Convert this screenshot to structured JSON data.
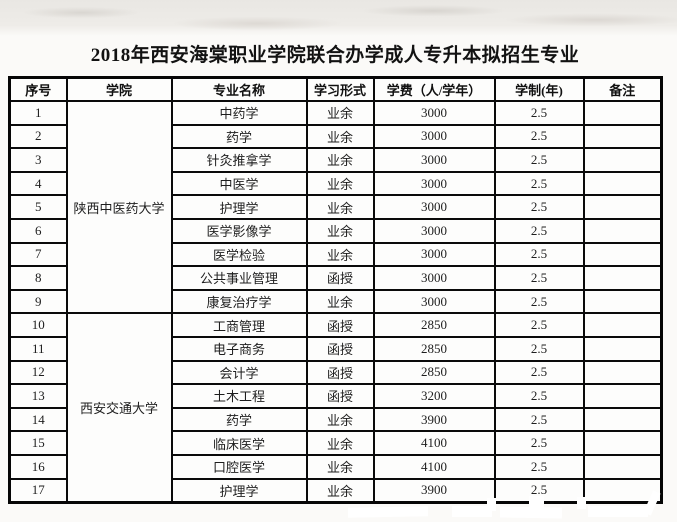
{
  "page_title": "2018年西安海棠职业学院联合办学成人专升本拟招生专业",
  "table": {
    "headers": [
      "序号",
      "学院",
      "专业名称",
      "学习形式",
      "学费（人/学年）",
      "学制(年)",
      "备注"
    ],
    "groups": [
      {
        "college": "陕西中医药大学",
        "rows": [
          {
            "no": "1",
            "major": "中药学",
            "form": "业余",
            "fee": "3000",
            "duration": "2.5",
            "note": ""
          },
          {
            "no": "2",
            "major": "药学",
            "form": "业余",
            "fee": "3000",
            "duration": "2.5",
            "note": ""
          },
          {
            "no": "3",
            "major": "针灸推拿学",
            "form": "业余",
            "fee": "3000",
            "duration": "2.5",
            "note": ""
          },
          {
            "no": "4",
            "major": "中医学",
            "form": "业余",
            "fee": "3000",
            "duration": "2.5",
            "note": ""
          },
          {
            "no": "5",
            "major": "护理学",
            "form": "业余",
            "fee": "3000",
            "duration": "2.5",
            "note": ""
          },
          {
            "no": "6",
            "major": "医学影像学",
            "form": "业余",
            "fee": "3000",
            "duration": "2.5",
            "note": ""
          },
          {
            "no": "7",
            "major": "医学检验",
            "form": "业余",
            "fee": "3000",
            "duration": "2.5",
            "note": ""
          },
          {
            "no": "8",
            "major": "公共事业管理",
            "form": "函授",
            "fee": "3000",
            "duration": "2.5",
            "note": ""
          },
          {
            "no": "9",
            "major": "康复治疗学",
            "form": "业余",
            "fee": "3000",
            "duration": "2.5",
            "note": ""
          }
        ]
      },
      {
        "college": "西安交通大学",
        "rows": [
          {
            "no": "10",
            "major": "工商管理",
            "form": "函授",
            "fee": "2850",
            "duration": "2.5",
            "note": ""
          },
          {
            "no": "11",
            "major": "电子商务",
            "form": "函授",
            "fee": "2850",
            "duration": "2.5",
            "note": ""
          },
          {
            "no": "12",
            "major": "会计学",
            "form": "函授",
            "fee": "2850",
            "duration": "2.5",
            "note": ""
          },
          {
            "no": "13",
            "major": "土木工程",
            "form": "函授",
            "fee": "3200",
            "duration": "2.5",
            "note": ""
          },
          {
            "no": "14",
            "major": "药学",
            "form": "业余",
            "fee": "3900",
            "duration": "2.5",
            "note": ""
          },
          {
            "no": "15",
            "major": "临床医学",
            "form": "业余",
            "fee": "4100",
            "duration": "2.5",
            "note": ""
          },
          {
            "no": "16",
            "major": "口腔医学",
            "form": "业余",
            "fee": "4100",
            "duration": "2.5",
            "note": ""
          },
          {
            "no": "17",
            "major": "护理学",
            "form": "业余",
            "fee": "3900",
            "duration": "2.5",
            "note": ""
          }
        ]
      }
    ]
  },
  "colors": {
    "border": "#0a0a0a",
    "text": "#1e1e1e",
    "paper": "#fbfaf8",
    "scan_strip": "#e9e7e3",
    "watermark": "#ffffff"
  }
}
